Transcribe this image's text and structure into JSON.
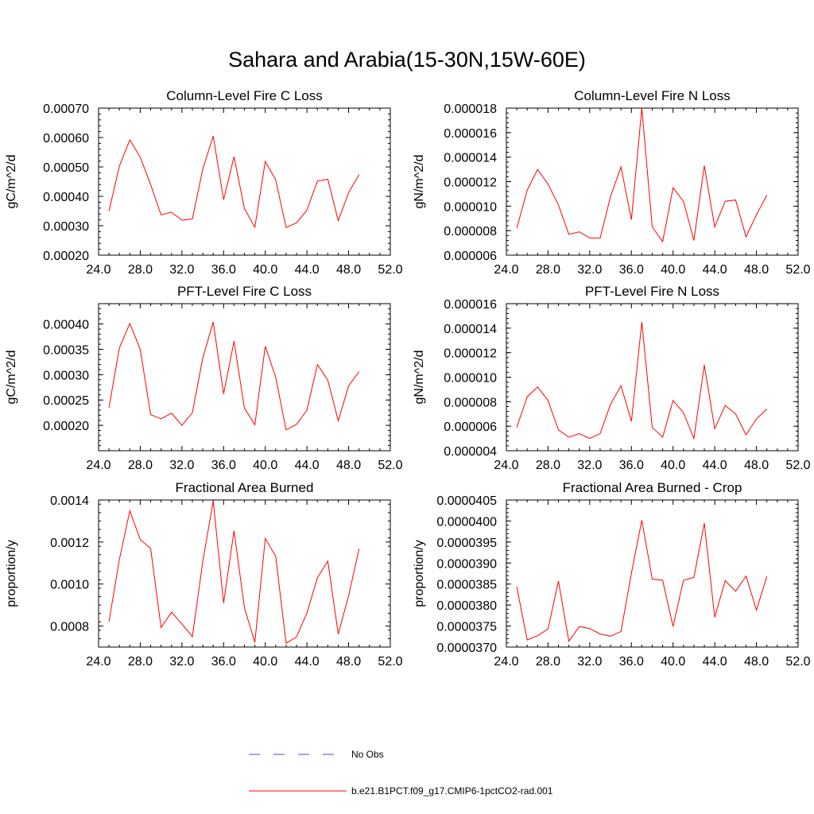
{
  "title": "Sahara and Arabia(15-30N,15W-60E)",
  "legend": {
    "entries": [
      {
        "label": "No Obs",
        "color": "#4b4bd0",
        "dash": true
      },
      {
        "label": "b.e21.B1PCT.f09_g17.CMIP6-1pctCO2-rad.001",
        "color": "#ff0000",
        "dash": false
      }
    ]
  },
  "chart_data": [
    {
      "type": "line",
      "title": "Column-Level Fire C Loss",
      "ylabel": "gC/m^2/d",
      "xlim": [
        24,
        52
      ],
      "xticks": [
        "24.0",
        "28.0",
        "32.0",
        "36.0",
        "40.0",
        "44.0",
        "48.0",
        "52.0"
      ],
      "ylim": [
        0.0002,
        0.0007
      ],
      "yticks": [
        {
          "v": 0.0002,
          "label": "0.00020"
        },
        {
          "v": 0.0003,
          "label": "0.00030"
        },
        {
          "v": 0.0004,
          "label": "0.00040"
        },
        {
          "v": 0.0005,
          "label": "0.00050"
        },
        {
          "v": 0.0006,
          "label": "0.00060"
        },
        {
          "v": 0.0007,
          "label": "0.00070"
        }
      ],
      "color": "#ff0000",
      "x": [
        25,
        26,
        27,
        28,
        29,
        30,
        31,
        32,
        33,
        34,
        35,
        36,
        37,
        38,
        39,
        40,
        41,
        42,
        43,
        44,
        45,
        46,
        47,
        48,
        49
      ],
      "y": [
        0.00035,
        0.000503,
        0.000592,
        0.000533,
        0.00044,
        0.000337,
        0.000346,
        0.000319,
        0.000323,
        0.000493,
        0.000605,
        0.000389,
        0.000535,
        0.000358,
        0.000295,
        0.000519,
        0.000456,
        0.000294,
        0.00031,
        0.000353,
        0.000452,
        0.000458,
        0.000317,
        0.000413,
        0.000474
      ]
    },
    {
      "type": "line",
      "title": "Column-Level Fire N Loss",
      "ylabel": "gN/m^2/d",
      "xlim": [
        24,
        52
      ],
      "xticks": [
        "24.0",
        "28.0",
        "32.0",
        "36.0",
        "40.0",
        "44.0",
        "48.0",
        "52.0"
      ],
      "ylim": [
        6e-06,
        1.8e-05
      ],
      "yticks": [
        {
          "v": 6e-06,
          "label": "0.000006"
        },
        {
          "v": 8e-06,
          "label": "0.000008"
        },
        {
          "v": 1e-05,
          "label": "0.000010"
        },
        {
          "v": 1.2e-05,
          "label": "0.000012"
        },
        {
          "v": 1.4e-05,
          "label": "0.000014"
        },
        {
          "v": 1.6e-05,
          "label": "0.000016"
        },
        {
          "v": 1.8e-05,
          "label": "0.000018"
        }
      ],
      "color": "#ff0000",
      "x": [
        25,
        26,
        27,
        28,
        29,
        30,
        31,
        32,
        33,
        34,
        35,
        36,
        37,
        38,
        39,
        40,
        41,
        42,
        43,
        44,
        45,
        46,
        47,
        48,
        49
      ],
      "y": [
        8.2e-06,
        1.13e-05,
        1.3e-05,
        1.18e-05,
        1.01e-05,
        7.7e-06,
        7.9e-06,
        7.4e-06,
        7.4e-06,
        1.08e-05,
        1.32e-05,
        8.9e-06,
        1.8e-05,
        8.3e-06,
        7.1e-06,
        1.15e-05,
        1.04e-05,
        7.2e-06,
        1.33e-05,
        8.3e-06,
        1.04e-05,
        1.05e-05,
        7.5e-06,
        9.3e-06,
        1.09e-05
      ]
    },
    {
      "type": "line",
      "title": "PFT-Level Fire C Loss",
      "ylabel": "gC/m^2/d",
      "xlim": [
        24,
        52
      ],
      "xticks": [
        "24.0",
        "28.0",
        "32.0",
        "36.0",
        "40.0",
        "44.0",
        "48.0",
        "52.0"
      ],
      "ylim": [
        0.00015,
        0.00044
      ],
      "yticks": [
        {
          "v": 0.0002,
          "label": "0.00020"
        },
        {
          "v": 0.00025,
          "label": "0.00025"
        },
        {
          "v": 0.0003,
          "label": "0.00030"
        },
        {
          "v": 0.00035,
          "label": "0.00035"
        },
        {
          "v": 0.0004,
          "label": "0.00040"
        }
      ],
      "color": "#ff0000",
      "x": [
        25,
        26,
        27,
        28,
        29,
        30,
        31,
        32,
        33,
        34,
        35,
        36,
        37,
        38,
        39,
        40,
        41,
        42,
        43,
        44,
        45,
        46,
        47,
        48,
        49
      ],
      "y": [
        0.000235,
        0.000353,
        0.000401,
        0.00035,
        0.000221,
        0.000213,
        0.000224,
        0.0002,
        0.000225,
        0.000333,
        0.000404,
        0.000262,
        0.000366,
        0.000234,
        0.000201,
        0.000356,
        0.000295,
        0.000191,
        0.000202,
        0.00023,
        0.00032,
        0.000289,
        0.000209,
        0.000278,
        0.000306
      ]
    },
    {
      "type": "line",
      "title": "PFT-Level Fire N Loss",
      "ylabel": "gN/m^2/d",
      "xlim": [
        24,
        52
      ],
      "xticks": [
        "24.0",
        "28.0",
        "32.0",
        "36.0",
        "40.0",
        "44.0",
        "48.0",
        "52.0"
      ],
      "ylim": [
        4e-06,
        1.6e-05
      ],
      "yticks": [
        {
          "v": 4e-06,
          "label": "0.000004"
        },
        {
          "v": 6e-06,
          "label": "0.000006"
        },
        {
          "v": 8e-06,
          "label": "0.000008"
        },
        {
          "v": 1e-05,
          "label": "0.000010"
        },
        {
          "v": 1.2e-05,
          "label": "0.000012"
        },
        {
          "v": 1.4e-05,
          "label": "0.000014"
        },
        {
          "v": 1.6e-05,
          "label": "0.000016"
        }
      ],
      "color": "#ff0000",
      "x": [
        25,
        26,
        27,
        28,
        29,
        30,
        31,
        32,
        33,
        34,
        35,
        36,
        37,
        38,
        39,
        40,
        41,
        42,
        43,
        44,
        45,
        46,
        47,
        48,
        49
      ],
      "y": [
        5.9e-06,
        8.4e-06,
        9.2e-06,
        8.1e-06,
        5.7e-06,
        5.1e-06,
        5.4e-06,
        5e-06,
        5.4e-06,
        7.8e-06,
        9.3e-06,
        6.4e-06,
        1.45e-05,
        5.9e-06,
        5.1e-06,
        8.1e-06,
        7.1e-06,
        5e-06,
        1.1e-05,
        5.8e-06,
        7.7e-06,
        7e-06,
        5.3e-06,
        6.6e-06,
        7.4e-06
      ]
    },
    {
      "type": "line",
      "title": "Fractional Area Burned",
      "ylabel": "proportion/y",
      "xlim": [
        24,
        52
      ],
      "xticks": [
        "24.0",
        "28.0",
        "32.0",
        "36.0",
        "40.0",
        "44.0",
        "48.0",
        "52.0"
      ],
      "ylim": [
        0.0007,
        0.0014
      ],
      "yticks": [
        {
          "v": 0.0008,
          "label": "0.0008"
        },
        {
          "v": 0.001,
          "label": "0.0010"
        },
        {
          "v": 0.0012,
          "label": "0.0012"
        },
        {
          "v": 0.0014,
          "label": "0.0014"
        }
      ],
      "color": "#ff0000",
      "x": [
        25,
        26,
        27,
        28,
        29,
        30,
        31,
        32,
        33,
        34,
        35,
        36,
        37,
        38,
        39,
        40,
        41,
        42,
        43,
        44,
        45,
        46,
        47,
        48,
        49
      ],
      "y": [
        0.000822,
        0.001117,
        0.001349,
        0.001212,
        0.001169,
        0.000793,
        0.000866,
        0.00081,
        0.000749,
        0.001108,
        0.001395,
        0.00091,
        0.001254,
        0.000887,
        0.000722,
        0.001217,
        0.001132,
        0.000718,
        0.000748,
        0.000862,
        0.00103,
        0.001109,
        0.000762,
        0.000945,
        0.001168
      ]
    },
    {
      "type": "line",
      "title": "Fractional Area Burned - Crop",
      "ylabel": "proportion/y",
      "xlim": [
        24,
        52
      ],
      "xticks": [
        "24.0",
        "28.0",
        "32.0",
        "36.0",
        "40.0",
        "44.0",
        "48.0",
        "52.0"
      ],
      "ylim": [
        3.7e-05,
        4.05e-05
      ],
      "yticks": [
        {
          "v": 3.7e-05,
          "label": "0.0000370"
        },
        {
          "v": 3.75e-05,
          "label": "0.0000375"
        },
        {
          "v": 3.8e-05,
          "label": "0.0000380"
        },
        {
          "v": 3.85e-05,
          "label": "0.0000385"
        },
        {
          "v": 3.9e-05,
          "label": "0.0000390"
        },
        {
          "v": 3.95e-05,
          "label": "0.0000395"
        },
        {
          "v": 4e-05,
          "label": "0.0000400"
        },
        {
          "v": 4.05e-05,
          "label": "0.0000405"
        }
      ],
      "color": "#ff0000",
      "x": [
        25,
        26,
        27,
        28,
        29,
        30,
        31,
        32,
        33,
        34,
        35,
        36,
        37,
        38,
        39,
        40,
        41,
        42,
        43,
        44,
        45,
        46,
        47,
        48,
        49
      ],
      "y": [
        3.843e-05,
        3.717e-05,
        3.727e-05,
        3.743e-05,
        3.857e-05,
        3.714e-05,
        3.749e-05,
        3.744e-05,
        3.731e-05,
        3.726e-05,
        3.737e-05,
        3.876e-05,
        4.002e-05,
        3.862e-05,
        3.859e-05,
        3.749e-05,
        3.859e-05,
        3.866e-05,
        3.995e-05,
        3.771e-05,
        3.858e-05,
        3.833e-05,
        3.869e-05,
        3.788e-05,
        3.868e-05
      ]
    }
  ]
}
